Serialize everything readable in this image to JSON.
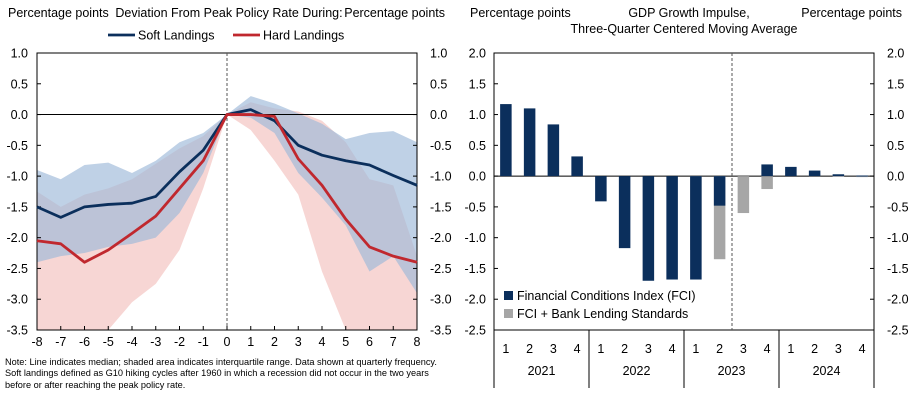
{
  "chart_data": [
    {
      "type": "line",
      "title": "Deviation From Peak Policy Rate During:",
      "ylabel_left": "Percentage points",
      "ylabel_right": "Percentage points",
      "xlabel": "",
      "x": [
        -8,
        -7,
        -6,
        -5,
        -4,
        -3,
        -2,
        -1,
        0,
        1,
        2,
        3,
        4,
        5,
        6,
        7,
        8
      ],
      "xticks": [
        "-8",
        "-7",
        "-6",
        "-5",
        "-4",
        "-3",
        "-2",
        "-1",
        "0",
        "1",
        "2",
        "3",
        "4",
        "5",
        "6",
        "7",
        "8"
      ],
      "ylim": [
        -3.5,
        1.0
      ],
      "yticks": [
        "1.0",
        "0.5",
        "0.0",
        "-0.5",
        "-1.0",
        "-1.5",
        "-2.0",
        "-2.5",
        "-3.0",
        "-3.5"
      ],
      "vertical_reference_x": 0,
      "series": [
        {
          "name": "Soft Landings",
          "color": "#0b2f5c",
          "band_color": "#9db8d8",
          "values": [
            -1.5,
            -1.67,
            -1.5,
            -1.46,
            -1.44,
            -1.33,
            -0.93,
            -0.58,
            0.0,
            0.08,
            -0.1,
            -0.5,
            -0.66,
            -0.75,
            -0.82,
            -0.99,
            -1.15
          ],
          "q25": [
            -2.4,
            -2.3,
            -2.25,
            -2.15,
            -2.1,
            -2.0,
            -1.6,
            -0.95,
            0.0,
            -0.05,
            -0.3,
            -0.95,
            -1.35,
            -1.8,
            -2.55,
            -2.3,
            -2.9
          ],
          "q75": [
            -0.9,
            -1.05,
            -0.82,
            -0.78,
            -0.95,
            -0.75,
            -0.45,
            -0.3,
            0.0,
            0.3,
            0.18,
            0.02,
            -0.15,
            -0.4,
            -0.3,
            -0.27,
            -0.45
          ]
        },
        {
          "name": "Hard Landings",
          "color": "#c0282e",
          "band_color": "#f7d4d2",
          "values": [
            -2.05,
            -2.1,
            -2.4,
            -2.2,
            -1.93,
            -1.65,
            -1.2,
            -0.75,
            0.0,
            0.0,
            -0.03,
            -0.72,
            -1.15,
            -1.7,
            -2.15,
            -2.3,
            -2.4
          ],
          "q25": [
            -3.5,
            -3.5,
            -3.5,
            -3.5,
            -3.05,
            -2.75,
            -2.2,
            -1.2,
            0.0,
            -0.25,
            -0.75,
            -1.3,
            -2.55,
            -3.5,
            -3.5,
            -3.5,
            -3.5
          ],
          "q75": [
            -1.25,
            -1.5,
            -1.3,
            -1.2,
            -1.05,
            -0.8,
            -0.55,
            -0.35,
            0.0,
            0.2,
            0.1,
            0.05,
            -0.1,
            -0.45,
            -1.05,
            -1.15,
            -2.3
          ]
        }
      ]
    },
    {
      "type": "bar",
      "title": "GDP Growth Impulse, Three-Quarter Centered Moving Average",
      "ylabel_left": "Percentage points",
      "ylabel_right": "Percentage points",
      "ylim": [
        -2.5,
        2.0
      ],
      "yticks": [
        "2.0",
        "1.5",
        "1.0",
        "0.5",
        "0.0",
        "-0.5",
        "-1.0",
        "-1.5",
        "-2.0",
        "-2.5"
      ],
      "quarters": [
        "1",
        "2",
        "3",
        "4",
        "1",
        "2",
        "3",
        "4",
        "1",
        "2",
        "3",
        "4",
        "1",
        "2",
        "3",
        "4"
      ],
      "years": [
        "2021",
        "2022",
        "2023",
        "2024"
      ],
      "vertical_reference_after_index": 9,
      "series": [
        {
          "name": "Financial Conditions Index (FCI)",
          "color": "#0b2f5c",
          "values": [
            1.17,
            1.1,
            0.84,
            0.32,
            -0.41,
            -1.17,
            -1.7,
            -1.68,
            -1.68,
            -0.48,
            null,
            0.19,
            0.15,
            0.09,
            0.03,
            0.01
          ]
        },
        {
          "name": "FCI + Bank Lending Standards",
          "color": "#a6a6a6",
          "values": [
            null,
            null,
            null,
            null,
            null,
            null,
            null,
            null,
            -1.2,
            -1.35,
            -0.6,
            -0.21,
            null,
            0.03,
            0.01,
            -0.01
          ]
        }
      ]
    }
  ],
  "left_panel": {
    "ylabel_left": "Percentage points",
    "ylabel_right": "Percentage points",
    "title": "Deviation From Peak Policy Rate During:",
    "legend": [
      "Soft Landings",
      "Hard Landings"
    ]
  },
  "right_panel": {
    "ylabel_left": "Percentage points",
    "ylabel_right": "Percentage points",
    "title_line1": "GDP Growth Impulse,",
    "title_line2": "Three-Quarter Centered Moving Average",
    "legend": [
      "Financial Conditions Index (FCI)",
      "FCI + Bank Lending Standards"
    ]
  },
  "note": "Note: Line indicates median; shaded area indicates interquartile range. Data shown at quarterly frequency. Soft landings defined as G10 hiking cycles after 1960 in which a recession did not occur in the two years before or after reaching the peak policy rate."
}
